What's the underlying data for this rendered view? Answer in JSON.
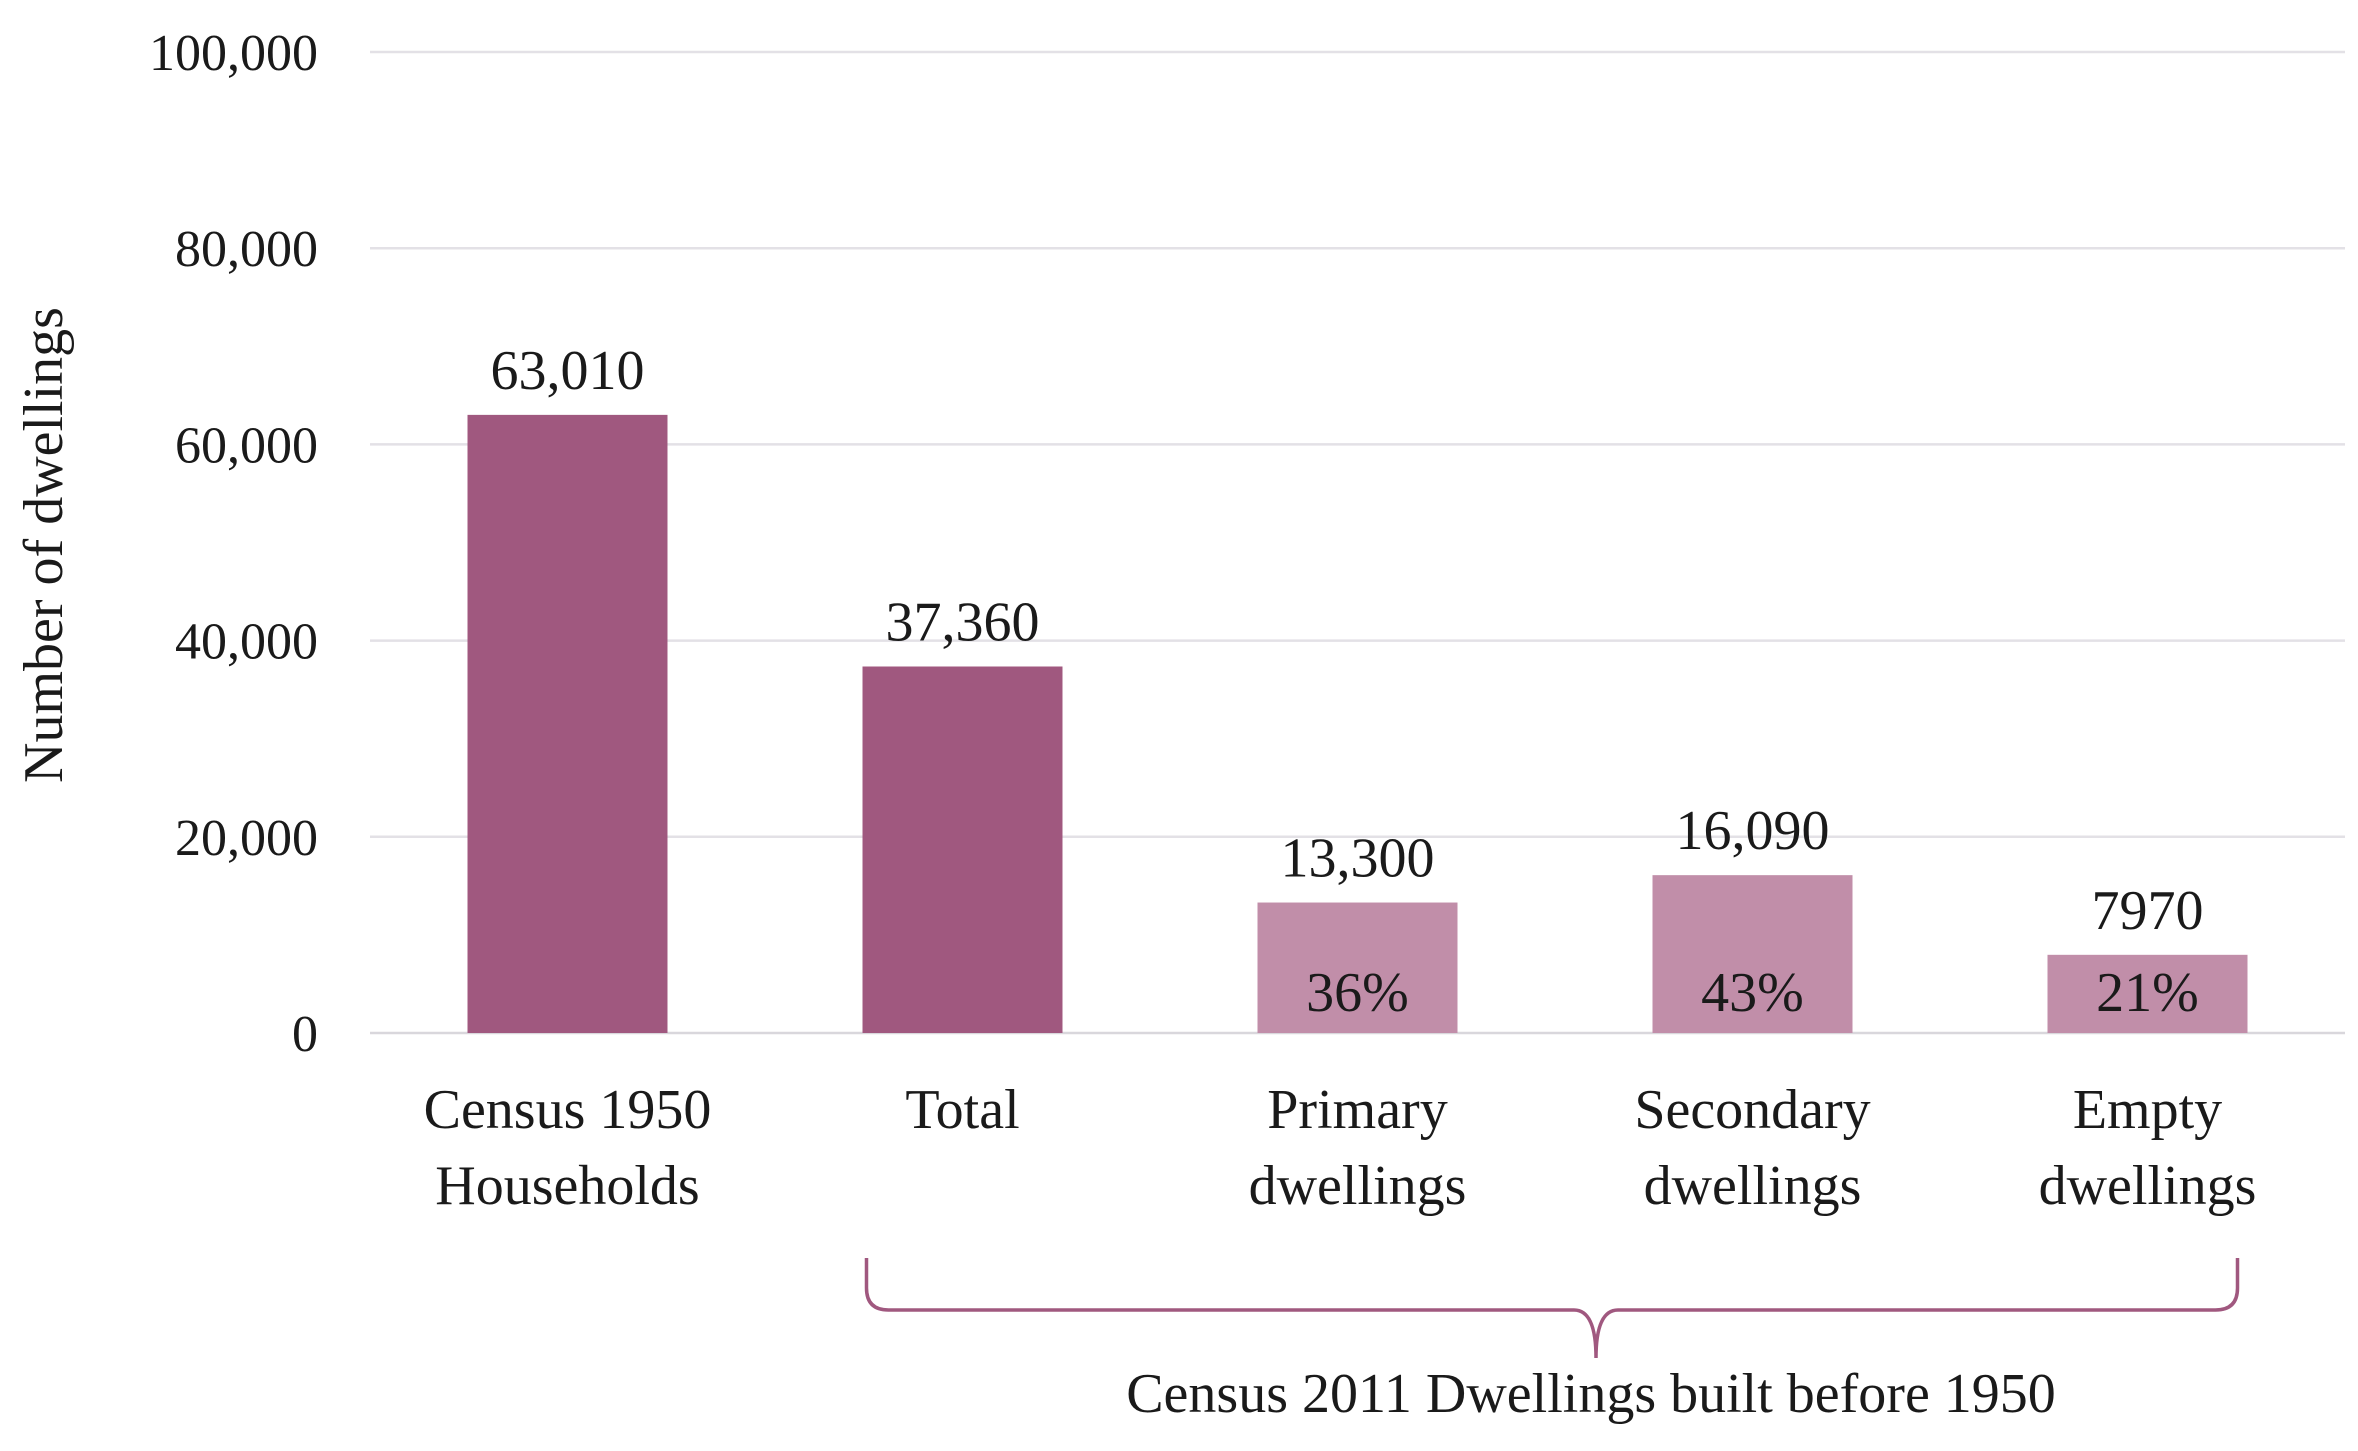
{
  "chart_data": {
    "type": "bar",
    "title": "",
    "xlabel": "",
    "ylabel": "Number of dwellings",
    "ylim": [
      0,
      100000
    ],
    "yticks": [
      0,
      20000,
      40000,
      60000,
      80000,
      100000
    ],
    "ytick_labels": [
      "0",
      "20,000",
      "40,000",
      "60,000",
      "80,000",
      "100,000"
    ],
    "grid": true,
    "categories": [
      [
        "Census 1950",
        "Households"
      ],
      [
        "Total"
      ],
      [
        "Primary",
        "dwellings"
      ],
      [
        "Secondary",
        "dwellings"
      ],
      [
        "Empty",
        "dwellings"
      ]
    ],
    "values": [
      63010,
      37360,
      13300,
      16090,
      7970
    ],
    "value_labels": [
      "63,010",
      "37,360",
      "13,300",
      "16,090",
      "7970"
    ],
    "percent_labels": [
      "",
      "",
      "36%",
      "43%",
      "21%"
    ],
    "bar_colors": [
      "#a0587f",
      "#a0587f",
      "#c18ea9",
      "#c18ea9",
      "#c18ea9"
    ],
    "bracket": {
      "label": "Census 2011 Dwellings built before 1950",
      "from_category": 1,
      "to_category": 4,
      "color": "#a0587f"
    }
  }
}
